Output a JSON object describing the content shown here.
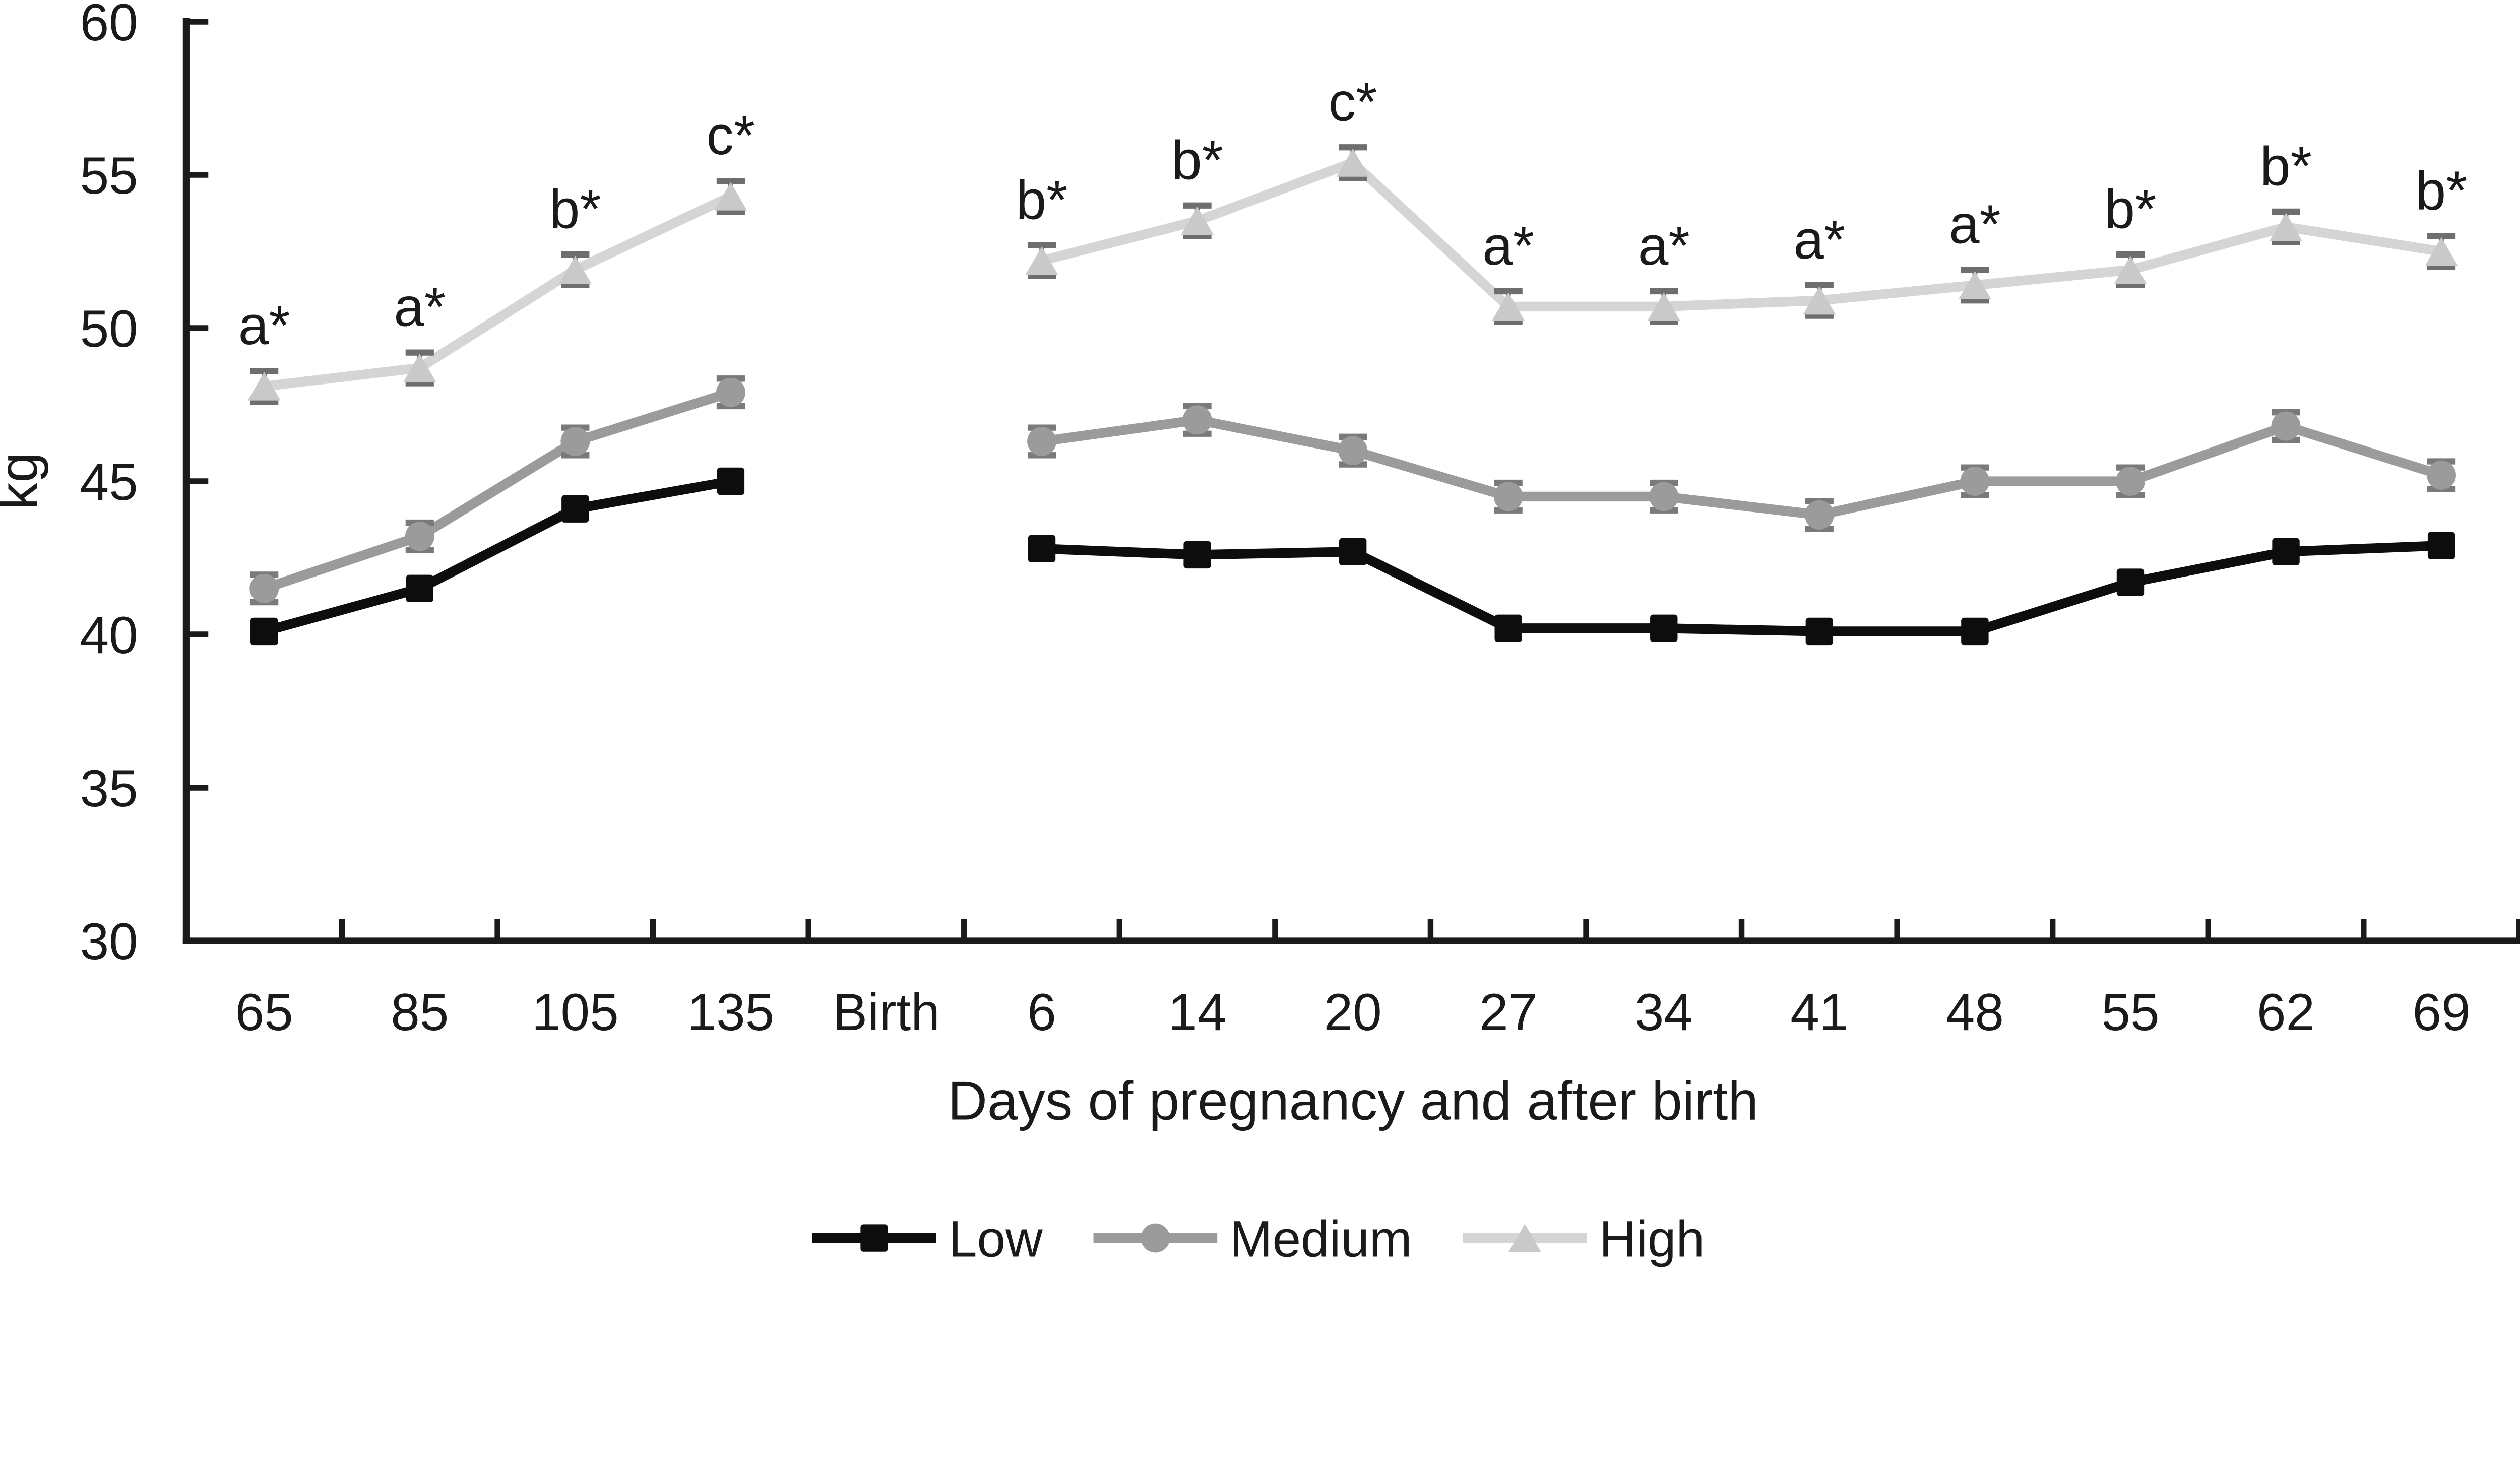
{
  "figure": {
    "background": "#ffffff",
    "axis_color": "#1a1a1a"
  },
  "chart_data": {
    "type": "line",
    "title": "",
    "ylabel": "kg",
    "xlabel": "Days of pregnancy and after birth",
    "ylim": [
      30,
      60
    ],
    "ytick_step": 5,
    "yticks": [
      30,
      35,
      40,
      45,
      50,
      55,
      60
    ],
    "categories": [
      "65",
      "85",
      "105",
      "135",
      "Birth",
      "6",
      "14",
      "20",
      "27",
      "34",
      "41",
      "48",
      "55",
      "62",
      "69"
    ],
    "gap_category": "Birth",
    "grid": false,
    "legend_position": "bottom",
    "annotations": [
      "a*",
      "a*",
      "b*",
      "c*",
      "",
      "b*",
      "b*",
      "c*",
      "a*",
      "a*",
      "a*",
      "a*",
      "b*",
      "b*",
      "b*"
    ],
    "series": [
      {
        "name": "Low",
        "marker": "square",
        "color": "#0d0d0d",
        "line_color": "#0d0d0d",
        "error_color": "#4a4a4a",
        "error": 0.2,
        "values": [
          40.1,
          41.5,
          44.1,
          45.0,
          null,
          42.8,
          42.6,
          42.7,
          40.2,
          40.2,
          40.1,
          40.1,
          41.7,
          42.7,
          42.9
        ]
      },
      {
        "name": "Medium",
        "marker": "circle",
        "color": "#9b9b9b",
        "line_color": "#9b9b9b",
        "error_color": "#7a7a7a",
        "error": 0.45,
        "values": [
          41.5,
          43.2,
          46.3,
          47.9,
          null,
          46.3,
          47.0,
          46.0,
          44.5,
          44.5,
          43.9,
          45.0,
          45.0,
          46.8,
          45.2
        ]
      },
      {
        "name": "High",
        "marker": "triangle",
        "color": "#c9c9c9",
        "line_color": "#d5d5d5",
        "error_color": "#6e6e6e",
        "error": 0.5,
        "values": [
          48.1,
          48.7,
          51.9,
          54.3,
          null,
          52.2,
          53.5,
          55.4,
          50.7,
          50.7,
          50.9,
          51.4,
          51.9,
          53.3,
          52.5
        ]
      }
    ]
  }
}
